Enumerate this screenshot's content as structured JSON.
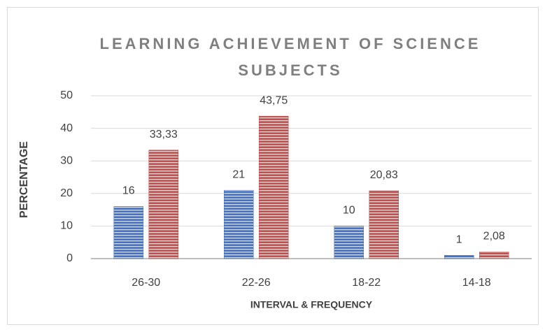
{
  "chart_data": {
    "type": "bar",
    "title": "LEARNING ACHIEVEMENT OF SCIENCE SUBJECTS",
    "x_label": "INTERVAL & FREQUENCY",
    "y_label": "PERCENTAGE",
    "categories": [
      "26-30",
      "22-26",
      "18-22",
      "14-18"
    ],
    "series": [
      {
        "color": "#4472c4",
        "values": [
          16,
          21,
          10,
          1
        ]
      },
      {
        "color": "#c0504d",
        "values": [
          33.33,
          43.75,
          20.83,
          2.08
        ],
        "value_labels": [
          "33,33",
          "43,75",
          "20,83",
          "2,08"
        ]
      }
    ],
    "ylim": [
      0,
      50
    ],
    "yticks": [
      0,
      10,
      20,
      30,
      40,
      50
    ],
    "grid": true
  }
}
